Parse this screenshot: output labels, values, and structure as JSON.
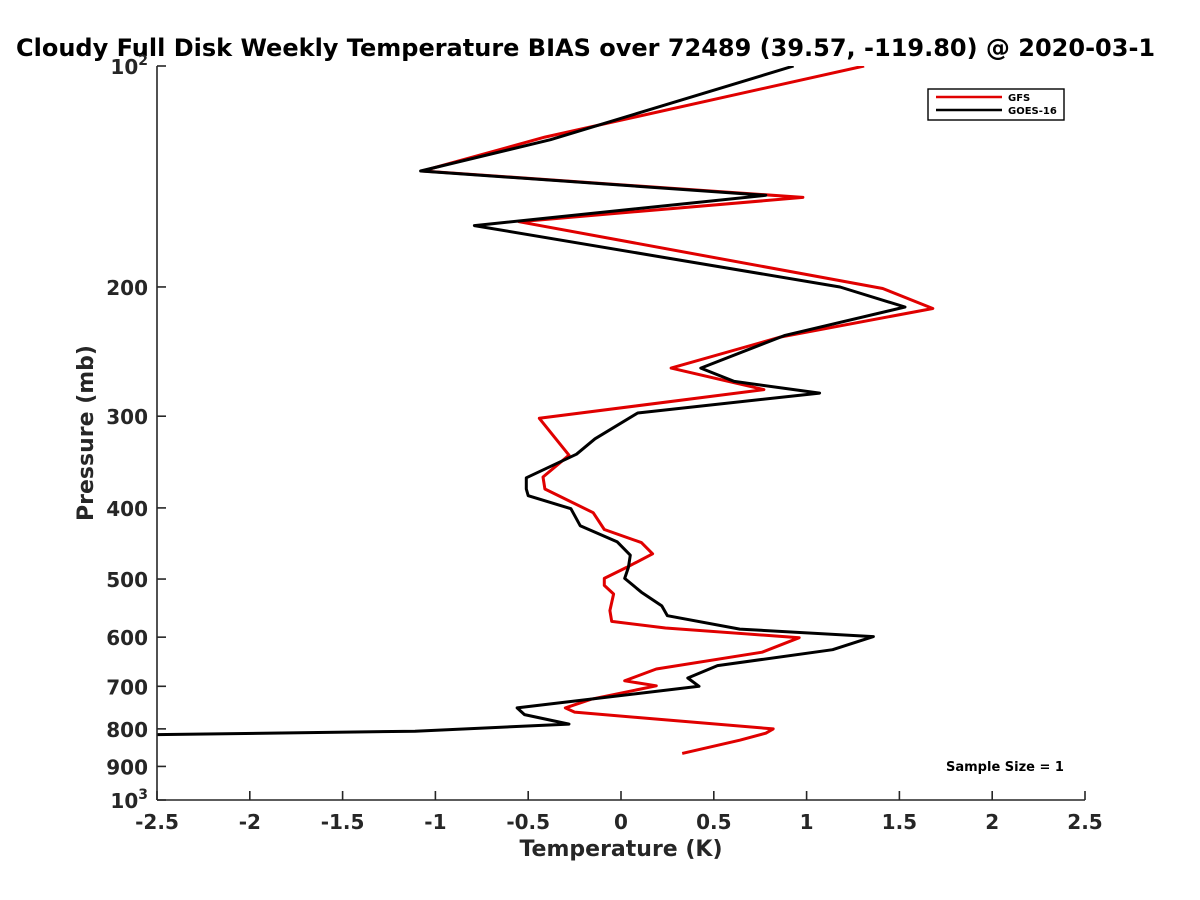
{
  "chart_data": {
    "type": "line",
    "title": "Cloudy Full Disk Weekly Temperature BIAS over 72489 (39.57, -119.80) @ 2020-03-1",
    "xlabel": "Temperature (K)",
    "ylabel": "Pressure (mb)",
    "xlim": [
      -2.5,
      2.5
    ],
    "ylim": [
      100,
      1000
    ],
    "yscale": "log",
    "yreversed": true,
    "x_ticks": [
      "-2.5",
      "-2",
      "-1.5",
      "-1",
      "-0.5",
      "0",
      "0.5",
      "1",
      "1.5",
      "2",
      "2.5"
    ],
    "x_tick_values": [
      -2.5,
      -2,
      -1.5,
      -1,
      -0.5,
      0,
      0.5,
      1,
      1.5,
      2,
      2.5
    ],
    "y_ticks": [
      {
        "value": 100,
        "base": "10",
        "exp": "2"
      },
      {
        "value": 200,
        "label": "200"
      },
      {
        "value": 300,
        "label": "300"
      },
      {
        "value": 400,
        "label": "400"
      },
      {
        "value": 500,
        "label": "500"
      },
      {
        "value": 600,
        "label": "600"
      },
      {
        "value": 700,
        "label": "700"
      },
      {
        "value": 800,
        "label": "800"
      },
      {
        "value": 900,
        "label": "900"
      },
      {
        "value": 1000,
        "base": "10",
        "exp": "3"
      }
    ],
    "grid": false,
    "legend_position": "top-right",
    "annotation": "Sample Size = 1",
    "series": [
      {
        "name": "GFS",
        "color": "#e00000",
        "points": [
          [
            1.31,
            100
          ],
          [
            -0.41,
            125
          ],
          [
            -1.07,
            139
          ],
          [
            0.98,
            151
          ],
          [
            -0.55,
            163
          ],
          [
            1.41,
            201
          ],
          [
            1.68,
            214
          ],
          [
            0.86,
            234
          ],
          [
            0.27,
            258
          ],
          [
            0.77,
            276
          ],
          [
            -0.44,
            302
          ],
          [
            -0.28,
            339
          ],
          [
            -0.42,
            363
          ],
          [
            -0.41,
            377
          ],
          [
            -0.15,
            406
          ],
          [
            -0.09,
            428
          ],
          [
            0.11,
            446
          ],
          [
            0.17,
            462
          ],
          [
            0.03,
            482
          ],
          [
            -0.09,
            499
          ],
          [
            -0.09,
            510
          ],
          [
            -0.04,
            524
          ],
          [
            -0.06,
            552
          ],
          [
            -0.05,
            571
          ],
          [
            0.24,
            583
          ],
          [
            0.96,
            601
          ],
          [
            0.76,
            629
          ],
          [
            0.19,
            663
          ],
          [
            0.02,
            688
          ],
          [
            0.19,
            699
          ],
          [
            -0.16,
            729
          ],
          [
            -0.3,
            749
          ],
          [
            -0.25,
            759
          ],
          [
            0.09,
            772
          ],
          [
            0.82,
            800
          ],
          [
            0.78,
            811
          ],
          [
            0.64,
            829
          ],
          [
            0.33,
            864
          ]
        ]
      },
      {
        "name": "GOES-16",
        "color": "#000000",
        "points": [
          [
            0.93,
            100
          ],
          [
            -0.38,
            126
          ],
          [
            -1.08,
            139
          ],
          [
            0.78,
            150
          ],
          [
            -0.79,
            165
          ],
          [
            1.18,
            200
          ],
          [
            1.53,
            213
          ],
          [
            0.88,
            233
          ],
          [
            0.43,
            258
          ],
          [
            0.61,
            269
          ],
          [
            1.07,
            279
          ],
          [
            0.09,
            297
          ],
          [
            -0.14,
            322
          ],
          [
            -0.24,
            338
          ],
          [
            -0.51,
            364
          ],
          [
            -0.51,
            377
          ],
          [
            -0.5,
            385
          ],
          [
            -0.27,
            401
          ],
          [
            -0.22,
            423
          ],
          [
            -0.02,
            445
          ],
          [
            0.05,
            464
          ],
          [
            0.04,
            482
          ],
          [
            0.02,
            499
          ],
          [
            0.11,
            521
          ],
          [
            0.22,
            544
          ],
          [
            0.25,
            561
          ],
          [
            0.64,
            585
          ],
          [
            1.36,
            599
          ],
          [
            1.14,
            624
          ],
          [
            0.52,
            656
          ],
          [
            0.36,
            682
          ],
          [
            0.42,
            700
          ],
          [
            -0.56,
            749
          ],
          [
            -0.52,
            765
          ],
          [
            -0.28,
            788
          ],
          [
            -1.11,
            806
          ],
          [
            -2.55,
            815
          ]
        ]
      }
    ]
  }
}
